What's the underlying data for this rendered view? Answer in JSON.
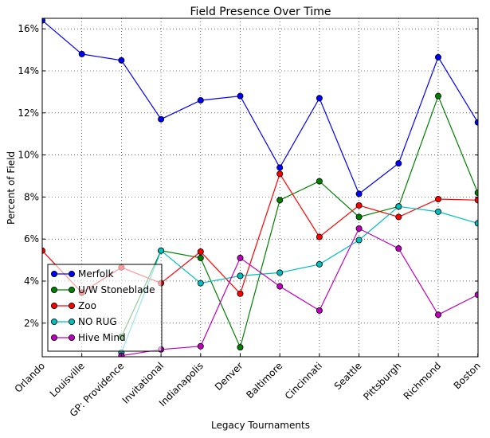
{
  "chart_data": {
    "type": "line",
    "title": "Field Presence Over Time",
    "xlabel": "Legacy Tournaments",
    "ylabel": "Percent of Field",
    "categories": [
      "Orlando",
      "Louisville",
      "GP: Providence",
      "Invitational",
      "Indianapolis",
      "Denver",
      "Baltimore",
      "Cincinnati",
      "Seattle",
      "Pittsburgh",
      "Richmond",
      "Boston"
    ],
    "ylim": [
      0.4,
      16.5
    ],
    "yticks": [
      {
        "value": 2,
        "label": "2%"
      },
      {
        "value": 4,
        "label": "4%"
      },
      {
        "value": 6,
        "label": "6%"
      },
      {
        "value": 8,
        "label": "8%"
      },
      {
        "value": 10,
        "label": "10%"
      },
      {
        "value": 12,
        "label": "12%"
      },
      {
        "value": 14,
        "label": "14%"
      },
      {
        "value": 16,
        "label": "16%"
      }
    ],
    "grid": true,
    "legend_position": "lower-left",
    "series": [
      {
        "name": "Merfolk",
        "color": "#0000ff",
        "values": [
          16.4,
          14.8,
          14.5,
          11.7,
          12.6,
          12.8,
          9.4,
          12.7,
          8.15,
          9.6,
          14.65,
          11.55
        ]
      },
      {
        "name": "U/W Stoneblade",
        "color": "#008000",
        "values": [
          null,
          null,
          1.35,
          5.45,
          5.1,
          0.85,
          7.85,
          8.75,
          7.05,
          7.55,
          12.8,
          8.2
        ]
      },
      {
        "name": "Zoo",
        "color": "#ff0000",
        "values": [
          5.45,
          3.45,
          4.65,
          3.9,
          5.4,
          3.4,
          9.1,
          6.1,
          7.6,
          7.05,
          7.9,
          7.85
        ]
      },
      {
        "name": "NO RUG",
        "color": "#00bfbf",
        "values": [
          null,
          null,
          0.6,
          5.45,
          3.9,
          4.25,
          4.4,
          4.8,
          5.95,
          7.55,
          7.3,
          6.75
        ]
      },
      {
        "name": "Hive Mind",
        "color": "#bf00bf",
        "values": [
          null,
          null,
          0.45,
          0.75,
          0.9,
          5.1,
          3.75,
          2.6,
          6.5,
          5.55,
          2.4,
          3.35
        ]
      }
    ]
  }
}
